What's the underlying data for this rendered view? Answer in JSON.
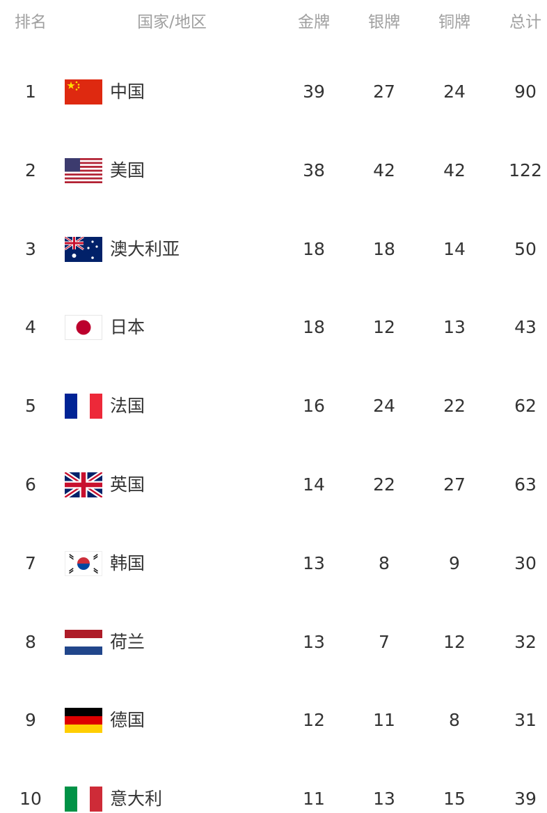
{
  "table": {
    "header": [
      "排名",
      "国家/地区",
      "金牌",
      "银牌",
      "铜牌",
      "总计"
    ],
    "rows": [
      [
        "1",
        "中国",
        "39",
        "27",
        "24",
        "90"
      ],
      [
        "2",
        "美国",
        "38",
        "42",
        "42",
        "122"
      ],
      [
        "3",
        "澳大利亚",
        "18",
        "18",
        "14",
        "50"
      ],
      [
        "4",
        "日本",
        "18",
        "12",
        "13",
        "43"
      ],
      [
        "5",
        "法国",
        "16",
        "24",
        "22",
        "62"
      ],
      [
        "6",
        "英国",
        "14",
        "22",
        "27",
        "63"
      ],
      [
        "7",
        "韩国",
        "13",
        "8",
        "9",
        "30"
      ],
      [
        "8",
        "荷兰",
        "13",
        "7",
        "12",
        "32"
      ],
      [
        "9",
        "德国",
        "12",
        "11",
        "8",
        "31"
      ],
      [
        "10",
        "意大利",
        "11",
        "13",
        "15",
        "39"
      ]
    ]
  }
}
